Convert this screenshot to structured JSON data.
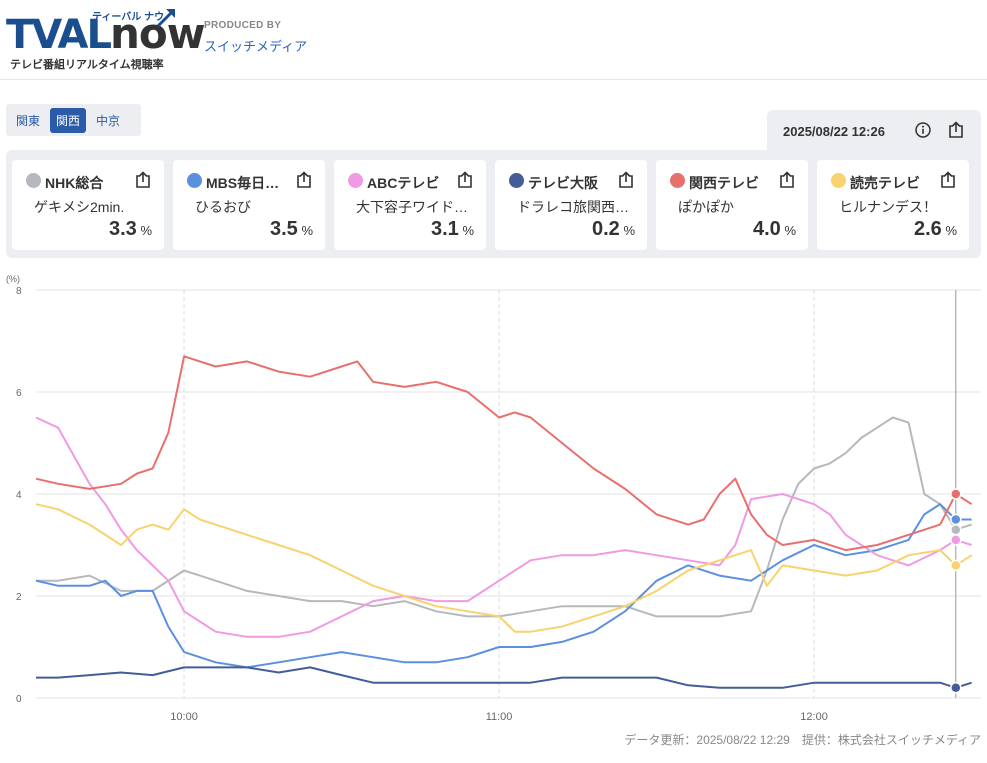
{
  "header": {
    "logo_part1": "TVAL",
    "logo_part2": "now",
    "logo_kana": "ティーバル ナウ",
    "logo_subtitle": "テレビ番組リアルタイム視聴率",
    "producer_label": "PRODUCED BY",
    "producer_name": "スイッチメディア"
  },
  "regions": [
    {
      "label": "関東",
      "active": false
    },
    {
      "label": "関西",
      "active": true
    },
    {
      "label": "中京",
      "active": false
    }
  ],
  "timestamp": "2025/08/22 12:26",
  "stations": [
    {
      "name": "NHK総合",
      "program": "ゲキメシ2min.",
      "rating": "3.3",
      "unit": "%",
      "color": "#b5b8bc"
    },
    {
      "name": "MBS毎日…",
      "program": "ひるおび",
      "rating": "3.5",
      "unit": "%",
      "color": "#5b8fe0"
    },
    {
      "name": "ABCテレビ",
      "program": "大下容子ワイド…",
      "rating": "3.1",
      "unit": "%",
      "color": "#ef9ae2"
    },
    {
      "name": "テレビ大阪",
      "program": "ドラレコ旅関西…",
      "rating": "0.2",
      "unit": "%",
      "color": "#445d99"
    },
    {
      "name": "関西テレビ",
      "program": "ぽかぽか",
      "rating": "4.0",
      "unit": "%",
      "color": "#e8706c"
    },
    {
      "name": "読売テレビ",
      "program": "ヒルナンデス！",
      "rating": "2.6",
      "unit": "%",
      "color": "#f7d26e"
    }
  ],
  "chart_data": {
    "type": "line",
    "yunit": "(%)",
    "ylim": [
      0,
      8
    ],
    "yticks": [
      0,
      2,
      4,
      6,
      8
    ],
    "xlim": [
      9.53,
      12.53
    ],
    "xticks": [
      {
        "v": 10,
        "label": "10:00"
      },
      {
        "v": 11,
        "label": "11:00"
      },
      {
        "v": 12,
        "label": "12:00"
      }
    ],
    "cursor_x": 12.45,
    "grid": true,
    "series": [
      {
        "name": "NHK総合",
        "color": "#b5b8bc",
        "x": [
          9.53,
          9.6,
          9.7,
          9.8,
          9.9,
          10,
          10.05,
          10.1,
          10.2,
          10.3,
          10.4,
          10.5,
          10.6,
          10.7,
          10.8,
          10.9,
          11,
          11.1,
          11.2,
          11.3,
          11.4,
          11.5,
          11.6,
          11.7,
          11.8,
          11.85,
          11.9,
          11.95,
          12,
          12.05,
          12.1,
          12.15,
          12.2,
          12.25,
          12.3,
          12.35,
          12.4,
          12.45,
          12.5
        ],
        "y": [
          2.3,
          2.3,
          2.4,
          2.1,
          2.1,
          2.5,
          2.4,
          2.3,
          2.1,
          2.0,
          1.9,
          1.9,
          1.8,
          1.9,
          1.7,
          1.6,
          1.6,
          1.7,
          1.8,
          1.8,
          1.8,
          1.6,
          1.6,
          1.6,
          1.7,
          2.5,
          3.5,
          4.2,
          4.5,
          4.6,
          4.8,
          5.1,
          5.3,
          5.5,
          5.4,
          4.0,
          3.8,
          3.3,
          3.4
        ]
      },
      {
        "name": "MBS毎日放送",
        "color": "#5b8fe0",
        "x": [
          9.53,
          9.6,
          9.7,
          9.75,
          9.8,
          9.85,
          9.9,
          9.95,
          10,
          10.05,
          10.1,
          10.2,
          10.3,
          10.4,
          10.5,
          10.6,
          10.7,
          10.8,
          10.9,
          11,
          11.1,
          11.2,
          11.3,
          11.4,
          11.5,
          11.6,
          11.7,
          11.8,
          11.9,
          12,
          12.1,
          12.2,
          12.3,
          12.35,
          12.4,
          12.45,
          12.5
        ],
        "y": [
          2.3,
          2.2,
          2.2,
          2.3,
          2.0,
          2.1,
          2.1,
          1.4,
          0.9,
          0.8,
          0.7,
          0.6,
          0.7,
          0.8,
          0.9,
          0.8,
          0.7,
          0.7,
          0.8,
          1.0,
          1.0,
          1.1,
          1.3,
          1.7,
          2.3,
          2.6,
          2.4,
          2.3,
          2.7,
          3.0,
          2.8,
          2.9,
          3.1,
          3.6,
          3.8,
          3.5,
          3.5
        ]
      },
      {
        "name": "ABCテレビ",
        "color": "#ef9ae2",
        "x": [
          9.53,
          9.6,
          9.7,
          9.75,
          9.8,
          9.85,
          9.9,
          9.95,
          10,
          10.05,
          10.1,
          10.2,
          10.3,
          10.4,
          10.5,
          10.6,
          10.7,
          10.8,
          10.9,
          11,
          11.1,
          11.2,
          11.3,
          11.4,
          11.5,
          11.6,
          11.7,
          11.75,
          11.8,
          11.9,
          12,
          12.05,
          12.1,
          12.2,
          12.3,
          12.4,
          12.45,
          12.5
        ],
        "y": [
          5.5,
          5.3,
          4.2,
          3.8,
          3.3,
          2.9,
          2.6,
          2.3,
          1.7,
          1.5,
          1.3,
          1.2,
          1.2,
          1.3,
          1.6,
          1.9,
          2.0,
          1.9,
          1.9,
          2.3,
          2.7,
          2.8,
          2.8,
          2.9,
          2.8,
          2.7,
          2.6,
          3.0,
          3.9,
          4.0,
          3.8,
          3.6,
          3.2,
          2.8,
          2.6,
          2.9,
          3.1,
          3.0
        ]
      },
      {
        "name": "テレビ大阪",
        "color": "#445d99",
        "x": [
          9.53,
          9.6,
          9.7,
          9.8,
          9.9,
          10,
          10.1,
          10.2,
          10.3,
          10.4,
          10.5,
          10.6,
          10.7,
          10.8,
          10.9,
          11,
          11.1,
          11.2,
          11.3,
          11.4,
          11.5,
          11.6,
          11.7,
          11.8,
          11.9,
          12,
          12.1,
          12.2,
          12.3,
          12.4,
          12.45,
          12.5
        ],
        "y": [
          0.4,
          0.4,
          0.45,
          0.5,
          0.45,
          0.6,
          0.6,
          0.6,
          0.5,
          0.6,
          0.45,
          0.3,
          0.3,
          0.3,
          0.3,
          0.3,
          0.3,
          0.4,
          0.4,
          0.4,
          0.4,
          0.25,
          0.2,
          0.2,
          0.2,
          0.3,
          0.3,
          0.3,
          0.3,
          0.3,
          0.2,
          0.3
        ]
      },
      {
        "name": "関西テレビ",
        "color": "#e8706c",
        "x": [
          9.53,
          9.6,
          9.7,
          9.8,
          9.85,
          9.9,
          9.95,
          10,
          10.05,
          10.1,
          10.2,
          10.3,
          10.4,
          10.5,
          10.55,
          10.6,
          10.7,
          10.8,
          10.9,
          11,
          11.05,
          11.1,
          11.2,
          11.3,
          11.4,
          11.5,
          11.6,
          11.65,
          11.7,
          11.75,
          11.8,
          11.85,
          11.9,
          12,
          12.1,
          12.2,
          12.3,
          12.4,
          12.45,
          12.5
        ],
        "y": [
          4.3,
          4.2,
          4.1,
          4.2,
          4.4,
          4.5,
          5.2,
          6.7,
          6.6,
          6.5,
          6.6,
          6.4,
          6.3,
          6.5,
          6.6,
          6.2,
          6.1,
          6.2,
          6.0,
          5.5,
          5.6,
          5.5,
          5.0,
          4.5,
          4.1,
          3.6,
          3.4,
          3.5,
          4.0,
          4.3,
          3.6,
          3.2,
          3.0,
          3.1,
          2.9,
          3.0,
          3.2,
          3.4,
          4.0,
          3.8
        ]
      },
      {
        "name": "読売テレビ",
        "color": "#f7d26e",
        "x": [
          9.53,
          9.6,
          9.7,
          9.8,
          9.85,
          9.9,
          9.95,
          10,
          10.05,
          10.1,
          10.2,
          10.3,
          10.4,
          10.5,
          10.6,
          10.7,
          10.8,
          10.9,
          11,
          11.05,
          11.1,
          11.2,
          11.3,
          11.4,
          11.5,
          11.6,
          11.7,
          11.8,
          11.85,
          11.9,
          12,
          12.1,
          12.2,
          12.3,
          12.4,
          12.45,
          12.5
        ],
        "y": [
          3.8,
          3.7,
          3.4,
          3.0,
          3.3,
          3.4,
          3.3,
          3.7,
          3.5,
          3.4,
          3.2,
          3.0,
          2.8,
          2.5,
          2.2,
          2.0,
          1.8,
          1.7,
          1.6,
          1.3,
          1.3,
          1.4,
          1.6,
          1.8,
          2.1,
          2.5,
          2.7,
          2.9,
          2.2,
          2.6,
          2.5,
          2.4,
          2.5,
          2.8,
          2.9,
          2.6,
          2.8
        ]
      }
    ]
  },
  "footer": {
    "note": "データ更新：2025/08/22 12:29　提供：株式会社スイッチメディア"
  }
}
